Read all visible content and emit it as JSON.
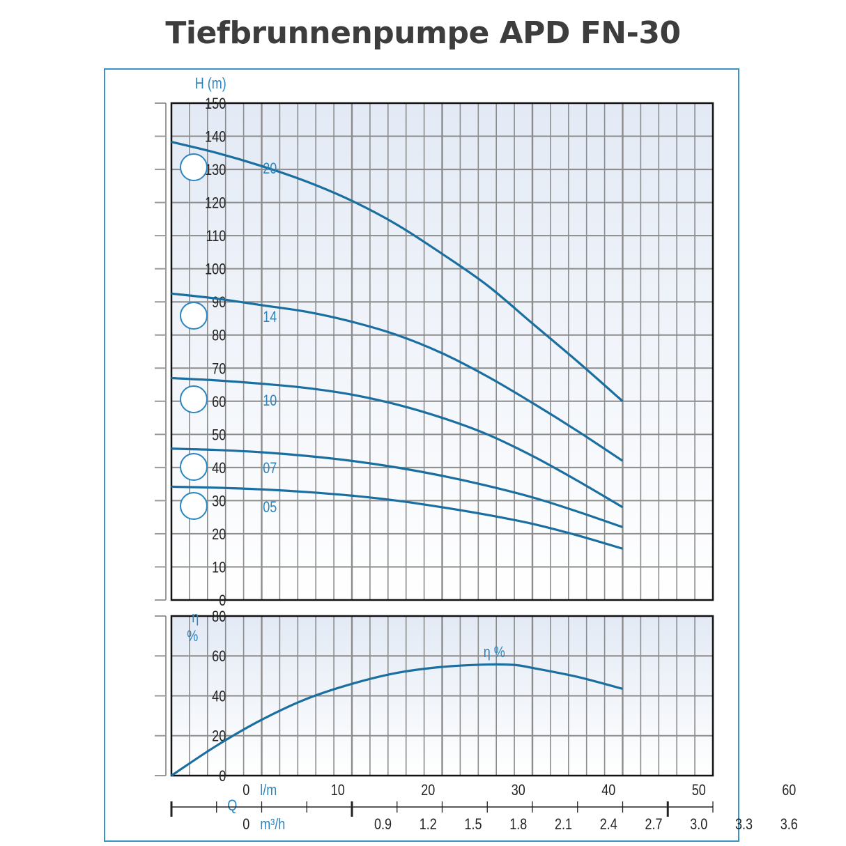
{
  "title": "Tiefbrunnenpumpe APD FN-30",
  "colors": {
    "curve": "#1a6fa0",
    "label": "#2a85c0",
    "frame": "#3a93c8",
    "grid": "#8c8c8c"
  },
  "chart_data": [
    {
      "type": "line",
      "ylabel": "H (m)",
      "xlabel": "l/m",
      "xlim": [
        0,
        60
      ],
      "ylim": [
        0,
        150
      ],
      "grid": true,
      "x_ticks": [
        0,
        10,
        20,
        30,
        40,
        50,
        60
      ],
      "y_ticks": [
        0,
        10,
        20,
        30,
        40,
        50,
        60,
        70,
        80,
        90,
        100,
        110,
        120,
        130,
        140,
        150
      ],
      "series": [
        {
          "name": "20",
          "x": [
            0,
            5,
            10,
            15,
            20,
            25,
            30,
            35,
            40,
            45,
            50
          ],
          "y": [
            138.3,
            135,
            131,
            126.3,
            120.5,
            113.3,
            104.5,
            95,
            83.5,
            72,
            60
          ]
        },
        {
          "name": "14",
          "x": [
            0,
            5,
            10,
            15,
            20,
            25,
            30,
            35,
            40,
            45,
            50
          ],
          "y": [
            92.5,
            91,
            89,
            87,
            84,
            80,
            74.5,
            67.5,
            59.5,
            51,
            42
          ]
        },
        {
          "name": "10",
          "x": [
            0,
            5,
            10,
            15,
            20,
            25,
            30,
            35,
            40,
            45,
            50
          ],
          "y": [
            67,
            66.3,
            65.3,
            64,
            62,
            59,
            55,
            50,
            43.5,
            36,
            28
          ]
        },
        {
          "name": "07",
          "x": [
            0,
            5,
            10,
            15,
            20,
            25,
            30,
            35,
            40,
            45,
            50
          ],
          "y": [
            45.7,
            45.3,
            44.6,
            43.5,
            42,
            40,
            37.5,
            34.5,
            31,
            26.7,
            22
          ]
        },
        {
          "name": "05",
          "x": [
            0,
            5,
            10,
            15,
            20,
            25,
            30,
            35,
            40,
            45,
            50
          ],
          "y": [
            34.2,
            33.9,
            33.4,
            32.6,
            31.5,
            30,
            28,
            25.7,
            23,
            19.5,
            15.5
          ]
        }
      ]
    },
    {
      "type": "line",
      "ylabel": "η %",
      "xlabel": "l/m",
      "xlim": [
        0,
        60
      ],
      "ylim": [
        0,
        80
      ],
      "grid": true,
      "y_ticks": [
        0,
        20,
        40,
        60,
        80
      ],
      "series": [
        {
          "name": "η %",
          "x": [
            0,
            5,
            10,
            15,
            20,
            25,
            30,
            35,
            38,
            40,
            45,
            50
          ],
          "y": [
            0,
            15,
            28,
            38.5,
            46,
            51.5,
            54.5,
            55.7,
            55.5,
            54,
            49.5,
            43.5
          ]
        }
      ]
    }
  ],
  "q_axis": {
    "label": "Q",
    "unit_lmin": "l/m",
    "unit_m3h": "m³/h",
    "m3h_ticks": [
      "0",
      "0.9",
      "1.2",
      "1.5",
      "1.8",
      "2.1",
      "2.4",
      "2.7",
      "3.0",
      "3.3",
      "3.6"
    ]
  }
}
